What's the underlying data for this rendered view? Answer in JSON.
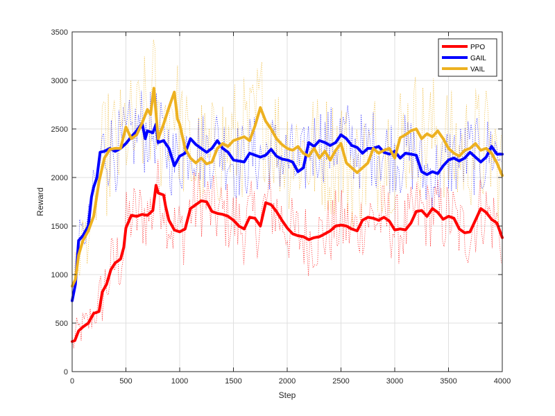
{
  "chart_data": {
    "type": "line",
    "title": "",
    "xlabel": "Step",
    "ylabel": "Reward",
    "xlim": [
      0,
      4000
    ],
    "ylim": [
      0,
      3500
    ],
    "xticks": [
      0,
      500,
      1000,
      1500,
      2000,
      2500,
      3000,
      3500,
      4000
    ],
    "yticks": [
      0,
      500,
      1000,
      1500,
      2000,
      2500,
      3000,
      3500
    ],
    "grid": true,
    "legend_position": "top-right",
    "series": [
      {
        "name": "PPO",
        "color": "#ff0000",
        "style": "solid",
        "x": [
          0,
          25,
          60,
          100,
          150,
          200,
          250,
          280,
          320,
          360,
          400,
          450,
          480,
          500,
          550,
          600,
          650,
          700,
          750,
          780,
          800,
          850,
          870,
          900,
          950,
          1000,
          1050,
          1100,
          1150,
          1200,
          1250,
          1300,
          1350,
          1400,
          1450,
          1500,
          1550,
          1600,
          1650,
          1700,
          1750,
          1800,
          1850,
          1900,
          1950,
          2000,
          2050,
          2100,
          2150,
          2200,
          2250,
          2300,
          2350,
          2400,
          2450,
          2500,
          2550,
          2600,
          2650,
          2700,
          2750,
          2800,
          2850,
          2900,
          2950,
          3000,
          3050,
          3100,
          3150,
          3200,
          3250,
          3300,
          3350,
          3400,
          3450,
          3500,
          3550,
          3600,
          3650,
          3700,
          3750,
          3800,
          3850,
          3900,
          3950,
          4000
        ],
        "values": [
          310,
          320,
          420,
          460,
          500,
          600,
          620,
          820,
          900,
          1050,
          1120,
          1160,
          1280,
          1480,
          1610,
          1600,
          1620,
          1610,
          1660,
          1920,
          1840,
          1820,
          1700,
          1560,
          1460,
          1440,
          1470,
          1680,
          1720,
          1760,
          1750,
          1650,
          1630,
          1620,
          1600,
          1560,
          1500,
          1470,
          1590,
          1580,
          1500,
          1740,
          1720,
          1650,
          1560,
          1480,
          1420,
          1400,
          1390,
          1360,
          1380,
          1390,
          1420,
          1450,
          1500,
          1510,
          1500,
          1470,
          1450,
          1560,
          1590,
          1580,
          1560,
          1590,
          1550,
          1460,
          1470,
          1460,
          1530,
          1650,
          1660,
          1600,
          1680,
          1640,
          1570,
          1600,
          1580,
          1470,
          1430,
          1440,
          1560,
          1680,
          1640,
          1570,
          1530,
          1380
        ]
      },
      {
        "name": "GAIL",
        "color": "#0000ff",
        "style": "solid",
        "x": [
          0,
          30,
          60,
          100,
          150,
          180,
          200,
          230,
          260,
          300,
          350,
          400,
          450,
          500,
          550,
          600,
          650,
          680,
          700,
          750,
          780,
          800,
          850,
          900,
          950,
          1000,
          1050,
          1100,
          1150,
          1200,
          1250,
          1300,
          1350,
          1400,
          1450,
          1500,
          1550,
          1600,
          1650,
          1700,
          1750,
          1800,
          1850,
          1900,
          1950,
          2000,
          2050,
          2100,
          2150,
          2200,
          2250,
          2300,
          2350,
          2400,
          2450,
          2500,
          2550,
          2600,
          2650,
          2700,
          2750,
          2800,
          2850,
          2900,
          2950,
          3000,
          3050,
          3100,
          3150,
          3200,
          3250,
          3300,
          3350,
          3400,
          3450,
          3500,
          3550,
          3600,
          3650,
          3700,
          3750,
          3800,
          3850,
          3900,
          3950,
          4000
        ],
        "values": [
          730,
          900,
          1350,
          1400,
          1500,
          1800,
          1900,
          2000,
          2260,
          2270,
          2300,
          2270,
          2300,
          2350,
          2420,
          2480,
          2560,
          2400,
          2480,
          2460,
          2550,
          2360,
          2380,
          2300,
          2120,
          2220,
          2250,
          2400,
          2340,
          2300,
          2260,
          2300,
          2380,
          2300,
          2260,
          2180,
          2170,
          2160,
          2250,
          2230,
          2210,
          2230,
          2290,
          2220,
          2190,
          2180,
          2160,
          2060,
          2100,
          2360,
          2320,
          2380,
          2360,
          2330,
          2360,
          2440,
          2400,
          2330,
          2310,
          2250,
          2300,
          2300,
          2320,
          2260,
          2240,
          2270,
          2200,
          2250,
          2240,
          2230,
          2060,
          2030,
          2060,
          2040,
          2120,
          2180,
          2200,
          2170,
          2200,
          2260,
          2210,
          2160,
          2210,
          2320,
          2240,
          2240
        ]
      },
      {
        "name": "VAIL",
        "color": "#edb120",
        "style": "solid",
        "x": [
          0,
          30,
          60,
          100,
          150,
          200,
          250,
          300,
          350,
          400,
          450,
          500,
          550,
          600,
          650,
          700,
          730,
          760,
          800,
          850,
          900,
          950,
          980,
          1000,
          1050,
          1100,
          1150,
          1200,
          1250,
          1300,
          1350,
          1400,
          1450,
          1500,
          1550,
          1600,
          1650,
          1700,
          1750,
          1800,
          1850,
          1900,
          1950,
          2000,
          2050,
          2100,
          2150,
          2200,
          2250,
          2300,
          2350,
          2400,
          2450,
          2500,
          2550,
          2600,
          2650,
          2700,
          2750,
          2800,
          2850,
          2900,
          2950,
          3000,
          3050,
          3100,
          3150,
          3200,
          3250,
          3300,
          3350,
          3400,
          3450,
          3500,
          3550,
          3600,
          3650,
          3700,
          3750,
          3800,
          3850,
          3900,
          3950,
          4000
        ],
        "values": [
          880,
          950,
          1200,
          1350,
          1450,
          1600,
          1960,
          2200,
          2290,
          2300,
          2300,
          2520,
          2400,
          2440,
          2560,
          2700,
          2650,
          2920,
          2400,
          2550,
          2720,
          2880,
          2600,
          2550,
          2300,
          2200,
          2150,
          2200,
          2140,
          2160,
          2300,
          2350,
          2320,
          2380,
          2400,
          2420,
          2380,
          2530,
          2720,
          2580,
          2500,
          2400,
          2340,
          2300,
          2280,
          2320,
          2250,
          2220,
          2300,
          2200,
          2270,
          2180,
          2280,
          2350,
          2150,
          2100,
          2050,
          2100,
          2150,
          2300,
          2250,
          2280,
          2300,
          2200,
          2410,
          2440,
          2480,
          2500,
          2400,
          2450,
          2420,
          2480,
          2400,
          2300,
          2250,
          2220,
          2280,
          2300,
          2350,
          2280,
          2300,
          2250,
          2150,
          2020
        ]
      }
    ],
    "noisy_series_shown": "dotted raw traces in each series color behind the smoothed lines"
  }
}
